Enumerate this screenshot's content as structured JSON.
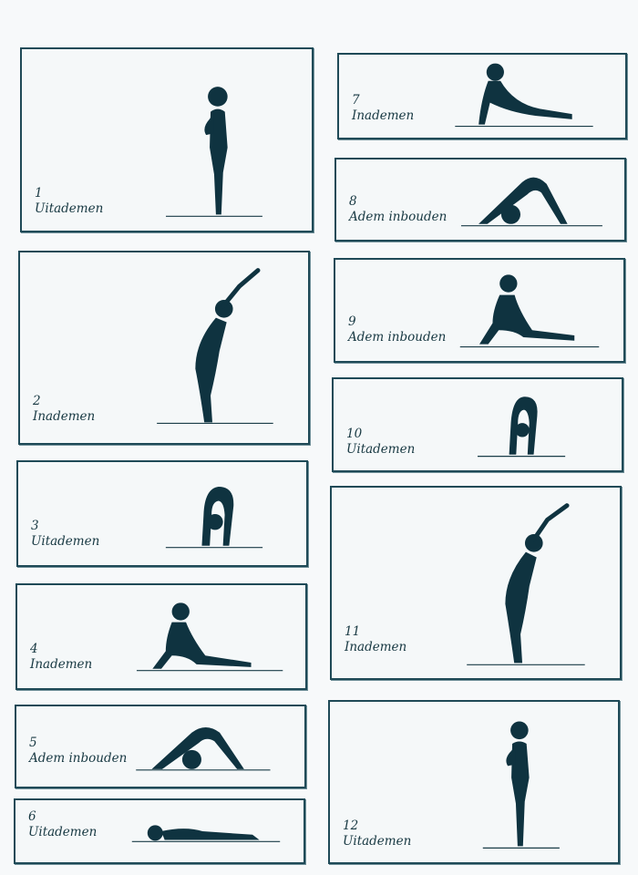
{
  "panels": [
    {
      "number": "1",
      "label": "Uitademen"
    },
    {
      "number": "2",
      "label": "Inademen"
    },
    {
      "number": "3",
      "label": "Uitademen"
    },
    {
      "number": "4",
      "label": "Inademen"
    },
    {
      "number": "5",
      "label": "Adem inbouden"
    },
    {
      "number": "6",
      "label": "Uitademen"
    },
    {
      "number": "7",
      "label": "Inademen"
    },
    {
      "number": "8",
      "label": "Adem inbouden"
    },
    {
      "number": "9",
      "label": "Adem inbouden"
    },
    {
      "number": "10",
      "label": "Uitademen"
    },
    {
      "number": "11",
      "label": "Inademen"
    },
    {
      "number": "12",
      "label": "Uitademen"
    }
  ],
  "colors": {
    "ink": "#0f3340",
    "border": "#1f4a57",
    "paper": "#f7f9fa"
  },
  "icons": [
    "standing-prayer-figure-icon",
    "backbend-figure-icon",
    "forward-bend-figure-icon",
    "lunge-figure-icon",
    "downward-dog-figure-icon",
    "prone-figure-icon",
    "cobra-figure-icon"
  ]
}
